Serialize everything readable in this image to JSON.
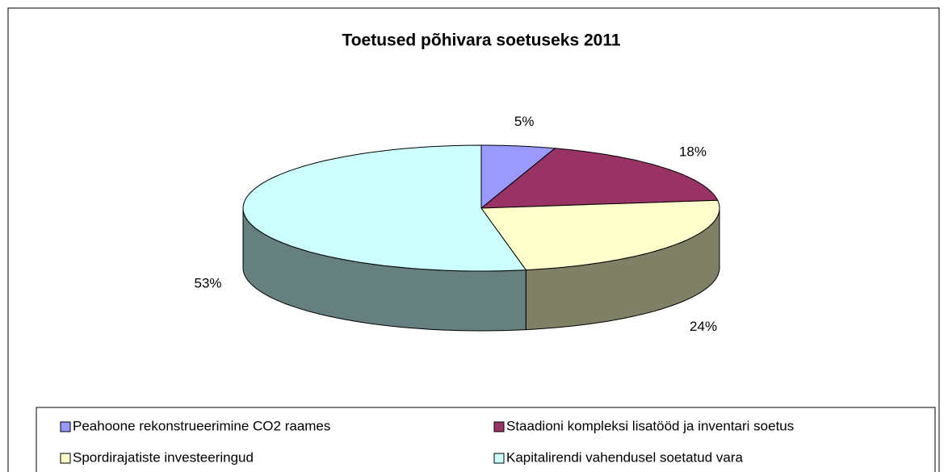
{
  "chart_data": {
    "type": "pie",
    "three_d": true,
    "title": "Toetused põhivara soetuseks 2011",
    "categories": [
      "Peahoone rekonstrueerimine CO2 raames",
      "Staadioni kompleksi lisatööd ja inventari soetus",
      "Spordirajatiste investeeringud",
      "Kapitalirendi vahendusel soetatud vara"
    ],
    "values": [
      5,
      18,
      24,
      53
    ],
    "value_labels": [
      "5%",
      "18%",
      "24%",
      "53%"
    ],
    "colors": [
      "#9999ff",
      "#993366",
      "#ffffcc",
      "#ccffff"
    ],
    "legend": "bottom"
  }
}
